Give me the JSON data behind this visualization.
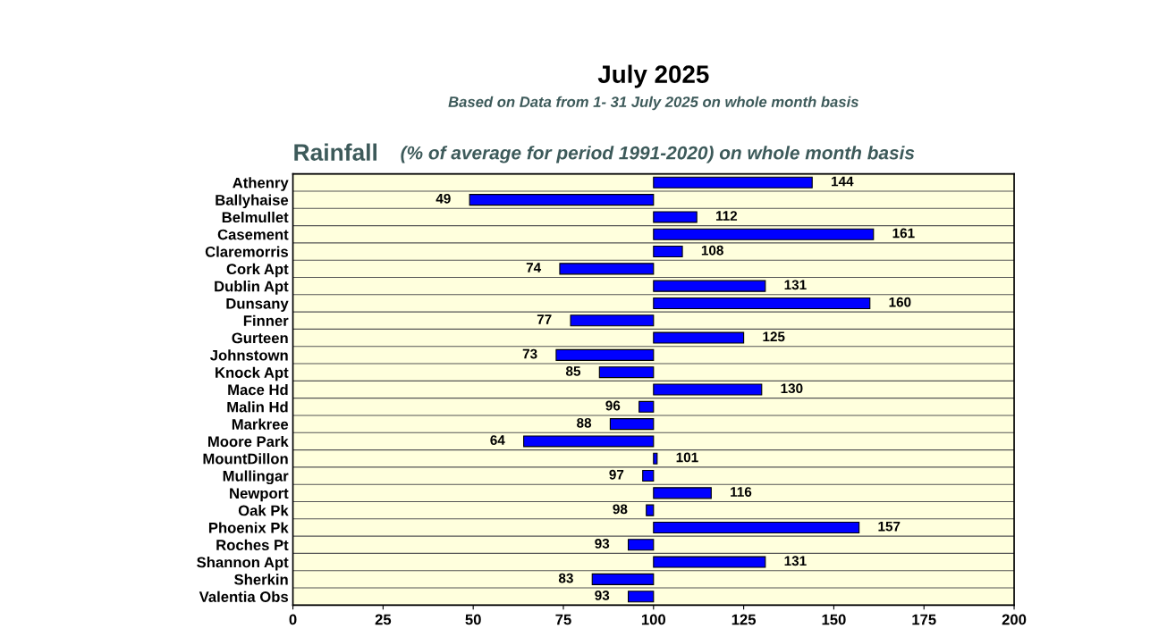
{
  "chart_data": {
    "type": "bar",
    "orientation": "horizontal",
    "title": "July 2025",
    "subtitle": "Based on Data from 1- 31 July 2025 on whole month basis",
    "annotations": [
      "Rainfall",
      "(% of average for period 1991-2020) on whole month basis"
    ],
    "categories": [
      "Athenry",
      "Ballyhaise",
      "Belmullet",
      "Casement",
      "Claremorris",
      "Cork Apt",
      "Dublin Apt",
      "Dunsany",
      "Finner",
      "Gurteen",
      "Johnstown",
      "Knock Apt",
      "Mace Hd",
      "Malin Hd",
      "Markree",
      "Moore Park",
      "MountDillon",
      "Mullingar",
      "Newport",
      "Oak Pk",
      "Phoenix Pk",
      "Roches Pt",
      "Shannon Apt",
      "Sherkin",
      "Valentia Obs"
    ],
    "base": [
      100,
      100,
      100,
      100,
      100,
      100,
      100,
      100,
      100,
      100,
      100,
      100,
      100,
      100,
      100,
      100,
      100,
      100,
      100,
      100,
      100,
      100,
      100,
      100,
      100
    ],
    "values": [
      44,
      -51,
      12,
      61,
      8,
      -26,
      31,
      60,
      -23,
      25,
      -27,
      -15,
      30,
      -4,
      -12,
      -36,
      1,
      -3,
      16,
      -2,
      57,
      -7,
      31,
      -17,
      -7
    ],
    "value_labels": [
      "144",
      "49",
      "112",
      "161",
      "108",
      "74",
      "131",
      "160",
      "77",
      "125",
      "73",
      "85",
      "130",
      "96",
      "88",
      "64",
      "101",
      "97",
      "116",
      "98",
      "157",
      "93",
      "131",
      "83",
      "93"
    ],
    "color": "#0000ff",
    "xlim": [
      0,
      200
    ],
    "xticks": [
      0,
      25,
      50,
      75,
      100,
      125,
      150,
      175,
      200
    ],
    "grid": "y",
    "legend": false
  }
}
